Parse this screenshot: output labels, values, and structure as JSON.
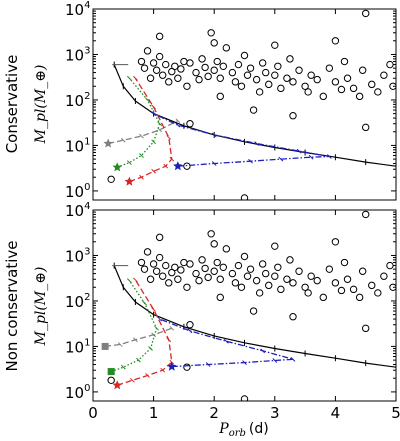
{
  "chart_data": [
    {
      "type": "scatter",
      "panel": "top",
      "row_label": "Conservative",
      "ylabel": "M_pl(M_⊕)",
      "xlabel": "",
      "xlim": [
        0,
        5
      ],
      "ylim_log10": [
        -0.2,
        4
      ],
      "yscale": "log",
      "xticks": [
        "0",
        "1",
        "2",
        "3",
        "4",
        "5"
      ],
      "xticks_visible": false,
      "yticks": [
        {
          "base": "10",
          "exp": "0",
          "value": 1
        },
        {
          "base": "10",
          "exp": "1",
          "value": 10
        },
        {
          "base": "10",
          "exp": "2",
          "value": 100
        },
        {
          "base": "10",
          "exp": "3",
          "value": 1000
        },
        {
          "base": "10",
          "exp": "4",
          "value": 10000
        }
      ],
      "observed_planets": [
        [
          0.8,
          700
        ],
        [
          0.85,
          500
        ],
        [
          0.9,
          1200
        ],
        [
          0.95,
          300
        ],
        [
          1.0,
          650
        ],
        [
          1.05,
          450
        ],
        [
          1.1,
          900
        ],
        [
          1.15,
          350
        ],
        [
          1.2,
          600
        ],
        [
          1.25,
          250
        ],
        [
          1.3,
          420
        ],
        [
          1.35,
          550
        ],
        [
          1.4,
          300
        ],
        [
          1.45,
          480
        ],
        [
          1.5,
          700
        ],
        [
          1.55,
          200
        ],
        [
          1.6,
          650
        ],
        [
          1.7,
          400
        ],
        [
          1.75,
          280
        ],
        [
          1.8,
          800
        ],
        [
          1.85,
          520
        ],
        [
          1.9,
          330
        ],
        [
          1.95,
          3000
        ],
        [
          2.0,
          450
        ],
        [
          2.05,
          700
        ],
        [
          2.1,
          300
        ],
        [
          2.15,
          550
        ],
        [
          2.2,
          1400
        ],
        [
          2.3,
          400
        ],
        [
          2.35,
          250
        ],
        [
          2.4,
          600
        ],
        [
          2.45,
          200
        ],
        [
          2.5,
          950
        ],
        [
          2.55,
          350
        ],
        [
          2.6,
          500
        ],
        [
          2.7,
          280
        ],
        [
          2.75,
          150
        ],
        [
          2.8,
          650
        ],
        [
          2.85,
          400
        ],
        [
          2.9,
          220
        ],
        [
          3.0,
          350
        ],
        [
          3.05,
          550
        ],
        [
          3.1,
          180
        ],
        [
          3.2,
          300
        ],
        [
          3.25,
          800
        ],
        [
          3.3,
          250
        ],
        [
          3.4,
          450
        ],
        [
          3.5,
          200
        ],
        [
          3.55,
          150
        ],
        [
          3.6,
          350
        ],
        [
          3.7,
          280
        ],
        [
          3.8,
          120
        ],
        [
          3.9,
          500
        ],
        [
          4.0,
          250
        ],
        [
          4.1,
          170
        ],
        [
          4.15,
          700
        ],
        [
          4.2,
          300
        ],
        [
          4.3,
          180
        ],
        [
          4.4,
          120
        ],
        [
          4.45,
          450
        ],
        [
          4.5,
          8000
        ],
        [
          4.6,
          220
        ],
        [
          4.7,
          150
        ],
        [
          4.8,
          350
        ],
        [
          4.9,
          600
        ],
        [
          4.95,
          200
        ],
        [
          1.1,
          2500
        ],
        [
          2.0,
          1800
        ],
        [
          3.0,
          1600
        ],
        [
          4.0,
          2000
        ],
        [
          1.6,
          30
        ],
        [
          2.1,
          120
        ],
        [
          2.65,
          60
        ],
        [
          3.3,
          45
        ],
        [
          0.3,
          1.8
        ],
        [
          2.5,
          0.7
        ],
        [
          1.55,
          3.5
        ],
        [
          4.5,
          25
        ]
      ],
      "boundary_curve": [
        [
          0.35,
          600
        ],
        [
          0.5,
          200
        ],
        [
          0.7,
          95
        ],
        [
          1.0,
          50
        ],
        [
          1.5,
          27
        ],
        [
          2.0,
          17
        ],
        [
          2.5,
          12
        ],
        [
          3.0,
          9
        ],
        [
          3.5,
          7
        ],
        [
          4.0,
          5.5
        ],
        [
          4.5,
          4.3
        ],
        [
          5.0,
          3.5
        ]
      ],
      "tracks": [
        {
          "color": "#7f7f7f",
          "style": "dashed",
          "start_marker": "star",
          "points": [
            [
              0.25,
              11
            ],
            [
              0.5,
              13
            ],
            [
              0.8,
              16
            ],
            [
              1.1,
              22
            ],
            [
              1.4,
              35
            ]
          ]
        },
        {
          "color": "#228b22",
          "style": "dotted",
          "start_marker": "star",
          "points": [
            [
              0.4,
              3.3
            ],
            [
              0.6,
              4.2
            ],
            [
              0.8,
              6
            ],
            [
              1.0,
              12
            ],
            [
              1.1,
              30
            ],
            [
              0.9,
              100
            ],
            [
              0.6,
              300
            ]
          ]
        },
        {
          "color": "#d62728",
          "style": "dashed",
          "start_marker": "star",
          "points": [
            [
              0.6,
              1.6
            ],
            [
              0.8,
              2
            ],
            [
              1.0,
              2.7
            ],
            [
              1.2,
              3.5
            ],
            [
              1.3,
              5
            ],
            [
              1.25,
              15
            ],
            [
              1.0,
              70
            ],
            [
              0.7,
              300
            ]
          ]
        },
        {
          "color": "#1f1fbf",
          "style": "dashdot",
          "start_marker": "star",
          "points": [
            [
              1.4,
              3.5
            ],
            [
              2.0,
              4
            ],
            [
              2.6,
              4.5
            ],
            [
              3.1,
              5
            ],
            [
              3.6,
              5.5
            ],
            [
              3.9,
              5.7
            ],
            [
              3.4,
              7.5
            ],
            [
              2.7,
              11
            ],
            [
              2.0,
              17
            ],
            [
              1.4,
              28
            ],
            [
              1.0,
              50
            ]
          ]
        }
      ]
    },
    {
      "type": "scatter",
      "panel": "bottom",
      "row_label": "Non conservative",
      "ylabel": "M_pl(M_⊕)",
      "xlabel_base": "P",
      "xlabel_sub": "orb",
      "xlabel_unit": "(d)",
      "xlim": [
        0,
        5
      ],
      "ylim_log10": [
        -0.2,
        4
      ],
      "yscale": "log",
      "xticks": [
        "0",
        "1",
        "2",
        "3",
        "4",
        "5"
      ],
      "xticks_visible": true,
      "yticks": [
        {
          "base": "10",
          "exp": "0",
          "value": 1
        },
        {
          "base": "10",
          "exp": "1",
          "value": 10
        },
        {
          "base": "10",
          "exp": "2",
          "value": 100
        },
        {
          "base": "10",
          "exp": "3",
          "value": 1000
        },
        {
          "base": "10",
          "exp": "4",
          "value": 10000
        }
      ],
      "observed_planets": [
        [
          0.8,
          700
        ],
        [
          0.85,
          500
        ],
        [
          0.9,
          1200
        ],
        [
          0.95,
          300
        ],
        [
          1.0,
          650
        ],
        [
          1.05,
          450
        ],
        [
          1.1,
          900
        ],
        [
          1.15,
          350
        ],
        [
          1.2,
          600
        ],
        [
          1.25,
          250
        ],
        [
          1.3,
          420
        ],
        [
          1.35,
          550
        ],
        [
          1.4,
          300
        ],
        [
          1.45,
          480
        ],
        [
          1.5,
          700
        ],
        [
          1.55,
          200
        ],
        [
          1.6,
          650
        ],
        [
          1.7,
          400
        ],
        [
          1.75,
          280
        ],
        [
          1.8,
          800
        ],
        [
          1.85,
          520
        ],
        [
          1.9,
          330
        ],
        [
          1.95,
          3000
        ],
        [
          2.0,
          450
        ],
        [
          2.05,
          700
        ],
        [
          2.1,
          300
        ],
        [
          2.15,
          550
        ],
        [
          2.2,
          1400
        ],
        [
          2.3,
          400
        ],
        [
          2.35,
          250
        ],
        [
          2.4,
          600
        ],
        [
          2.45,
          200
        ],
        [
          2.5,
          950
        ],
        [
          2.55,
          350
        ],
        [
          2.6,
          500
        ],
        [
          2.7,
          280
        ],
        [
          2.75,
          150
        ],
        [
          2.8,
          650
        ],
        [
          2.85,
          400
        ],
        [
          2.9,
          220
        ],
        [
          3.0,
          350
        ],
        [
          3.05,
          550
        ],
        [
          3.1,
          180
        ],
        [
          3.2,
          300
        ],
        [
          3.25,
          800
        ],
        [
          3.3,
          250
        ],
        [
          3.4,
          450
        ],
        [
          3.5,
          200
        ],
        [
          3.55,
          150
        ],
        [
          3.6,
          350
        ],
        [
          3.7,
          280
        ],
        [
          3.8,
          120
        ],
        [
          3.9,
          500
        ],
        [
          4.0,
          250
        ],
        [
          4.1,
          170
        ],
        [
          4.15,
          700
        ],
        [
          4.2,
          300
        ],
        [
          4.3,
          180
        ],
        [
          4.4,
          120
        ],
        [
          4.45,
          450
        ],
        [
          4.5,
          8000
        ],
        [
          4.6,
          220
        ],
        [
          4.7,
          150
        ],
        [
          4.8,
          350
        ],
        [
          4.9,
          600
        ],
        [
          4.95,
          200
        ],
        [
          1.1,
          2500
        ],
        [
          2.0,
          1800
        ],
        [
          3.0,
          1600
        ],
        [
          4.0,
          2000
        ],
        [
          1.6,
          30
        ],
        [
          2.1,
          120
        ],
        [
          2.65,
          60
        ],
        [
          3.3,
          45
        ],
        [
          0.3,
          1.8
        ],
        [
          2.5,
          0.7
        ],
        [
          1.55,
          3.5
        ],
        [
          4.5,
          25
        ]
      ],
      "boundary_curve": [
        [
          0.35,
          600
        ],
        [
          0.5,
          200
        ],
        [
          0.7,
          95
        ],
        [
          1.0,
          50
        ],
        [
          1.5,
          27
        ],
        [
          2.0,
          17
        ],
        [
          2.5,
          12
        ],
        [
          3.0,
          9
        ],
        [
          3.5,
          7
        ],
        [
          4.0,
          5.5
        ],
        [
          4.5,
          4.3
        ],
        [
          5.0,
          3.5
        ]
      ],
      "tracks": [
        {
          "color": "#7f7f7f",
          "style": "dashed",
          "start_marker": "square",
          "points": [
            [
              0.2,
              10
            ],
            [
              0.45,
              11
            ],
            [
              0.7,
              14
            ],
            [
              1.0,
              18
            ],
            [
              1.3,
              25
            ]
          ]
        },
        {
          "color": "#228b22",
          "style": "dotted",
          "start_marker": "square",
          "points": [
            [
              0.3,
              2.8
            ],
            [
              0.5,
              3.5
            ],
            [
              0.75,
              5
            ],
            [
              0.95,
              9
            ],
            [
              1.05,
              25
            ],
            [
              0.85,
              90
            ],
            [
              0.6,
              280
            ]
          ]
        },
        {
          "color": "#d62728",
          "style": "dashed",
          "start_marker": "star",
          "points": [
            [
              0.4,
              1.4
            ],
            [
              0.65,
              1.8
            ],
            [
              0.9,
              2.3
            ],
            [
              1.15,
              3
            ],
            [
              1.3,
              4.5
            ],
            [
              1.25,
              14
            ],
            [
              1.0,
              65
            ],
            [
              0.7,
              290
            ]
          ]
        },
        {
          "color": "#1f1fbf",
          "style": "dashdot",
          "start_marker": "star",
          "points": [
            [
              1.3,
              3.6
            ],
            [
              1.9,
              4
            ],
            [
              2.5,
              4.4
            ],
            [
              3.0,
              4.9
            ],
            [
              3.3,
              5.2
            ],
            [
              2.8,
              8
            ],
            [
              2.2,
              13
            ],
            [
              1.6,
              22
            ],
            [
              1.1,
              40
            ]
          ]
        }
      ]
    }
  ]
}
